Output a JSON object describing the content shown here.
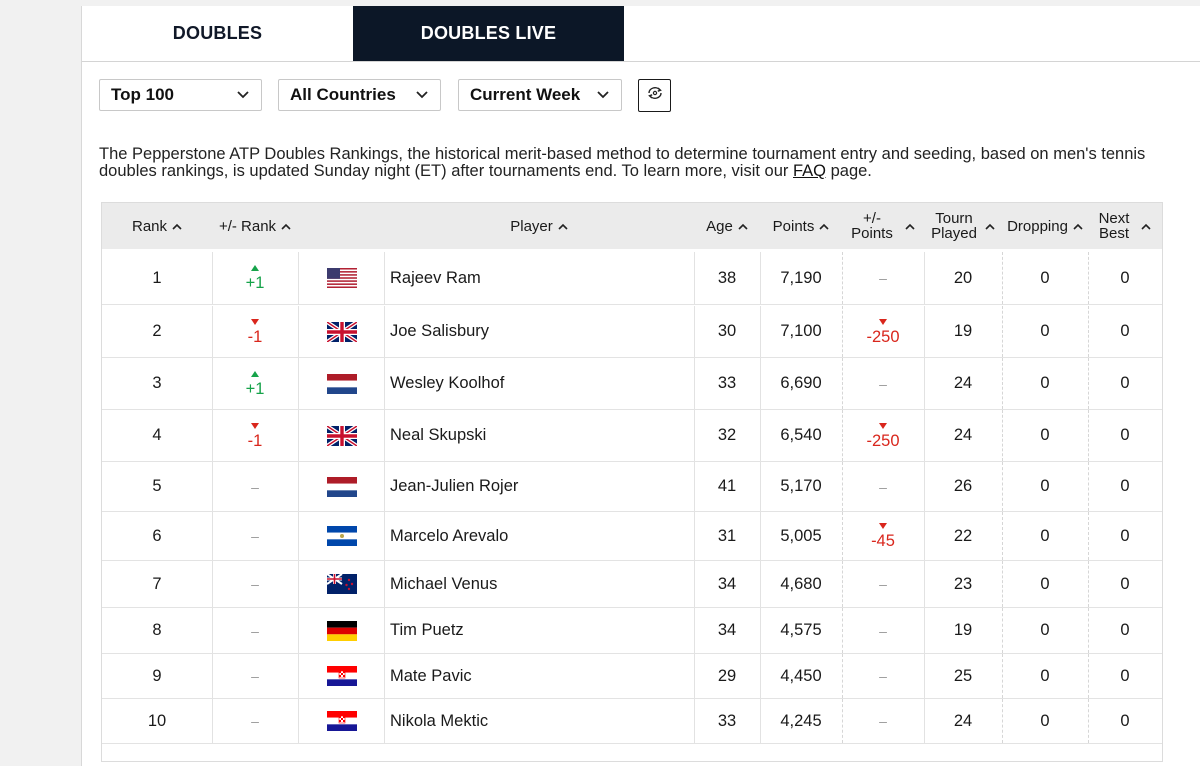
{
  "tabs": [
    {
      "label": "DOUBLES",
      "active": false
    },
    {
      "label": "DOUBLES LIVE",
      "active": true
    }
  ],
  "filters": {
    "range": "Top 100",
    "country": "All Countries",
    "week": "Current Week"
  },
  "description": {
    "text": "The Pepperstone ATP Doubles Rankings, the historical merit-based method to determine tournament entry and seeding, based on men's tennis doubles rankings, is updated Sunday night (ET) after tournaments end. To learn more, visit our ",
    "link": "FAQ",
    "suffix": " page."
  },
  "columns": {
    "rank": "Rank",
    "rank_move": "+/- Rank",
    "player": "Player",
    "age": "Age",
    "points": "Points",
    "points_move_1": "+/-",
    "points_move_2": "Points",
    "tourn_1": "Tourn",
    "tourn_2": "Played",
    "dropping": "Dropping",
    "next_1": "Next",
    "next_2": "Best"
  },
  "colors": {
    "dark_tab": "#0c1727",
    "up": "#16a34a",
    "down": "#d9261c"
  },
  "rows": [
    {
      "rank": "1",
      "rank_move": "+1",
      "rank_dir": "up",
      "flag": "usa",
      "player": "Rajeev Ram",
      "age": "38",
      "points": "7,190",
      "points_move": "–",
      "points_dir": "none",
      "tourn": "20",
      "dropping": "0",
      "next_best": "0"
    },
    {
      "rank": "2",
      "rank_move": "-1",
      "rank_dir": "down",
      "flag": "gbr",
      "player": "Joe Salisbury",
      "age": "30",
      "points": "7,100",
      "points_move": "-250",
      "points_dir": "down",
      "tourn": "19",
      "dropping": "0",
      "next_best": "0"
    },
    {
      "rank": "3",
      "rank_move": "+1",
      "rank_dir": "up",
      "flag": "ned",
      "player": "Wesley Koolhof",
      "age": "33",
      "points": "6,690",
      "points_move": "–",
      "points_dir": "none",
      "tourn": "24",
      "dropping": "0",
      "next_best": "0"
    },
    {
      "rank": "4",
      "rank_move": "-1",
      "rank_dir": "down",
      "flag": "gbr",
      "player": "Neal Skupski",
      "age": "32",
      "points": "6,540",
      "points_move": "-250",
      "points_dir": "down",
      "tourn": "24",
      "dropping": "0",
      "next_best": "0"
    },
    {
      "rank": "5",
      "rank_move": "–",
      "rank_dir": "none",
      "flag": "ned",
      "player": "Jean-Julien Rojer",
      "age": "41",
      "points": "5,170",
      "points_move": "–",
      "points_dir": "none",
      "tourn": "26",
      "dropping": "0",
      "next_best": "0"
    },
    {
      "rank": "6",
      "rank_move": "–",
      "rank_dir": "none",
      "flag": "esa",
      "player": "Marcelo Arevalo",
      "age": "31",
      "points": "5,005",
      "points_move": "-45",
      "points_dir": "down",
      "tourn": "22",
      "dropping": "0",
      "next_best": "0"
    },
    {
      "rank": "7",
      "rank_move": "–",
      "rank_dir": "none",
      "flag": "nzl",
      "player": "Michael Venus",
      "age": "34",
      "points": "4,680",
      "points_move": "–",
      "points_dir": "none",
      "tourn": "23",
      "dropping": "0",
      "next_best": "0"
    },
    {
      "rank": "8",
      "rank_move": "–",
      "rank_dir": "none",
      "flag": "ger",
      "player": "Tim Puetz",
      "age": "34",
      "points": "4,575",
      "points_move": "–",
      "points_dir": "none",
      "tourn": "19",
      "dropping": "0",
      "next_best": "0"
    },
    {
      "rank": "9",
      "rank_move": "–",
      "rank_dir": "none",
      "flag": "cro",
      "player": "Mate Pavic",
      "age": "29",
      "points": "4,450",
      "points_move": "–",
      "points_dir": "none",
      "tourn": "25",
      "dropping": "0",
      "next_best": "0"
    },
    {
      "rank": "10",
      "rank_move": "–",
      "rank_dir": "none",
      "flag": "cro",
      "player": "Nikola Mektic",
      "age": "33",
      "points": "4,245",
      "points_move": "–",
      "points_dir": "none",
      "tourn": "24",
      "dropping": "0",
      "next_best": "0"
    }
  ]
}
